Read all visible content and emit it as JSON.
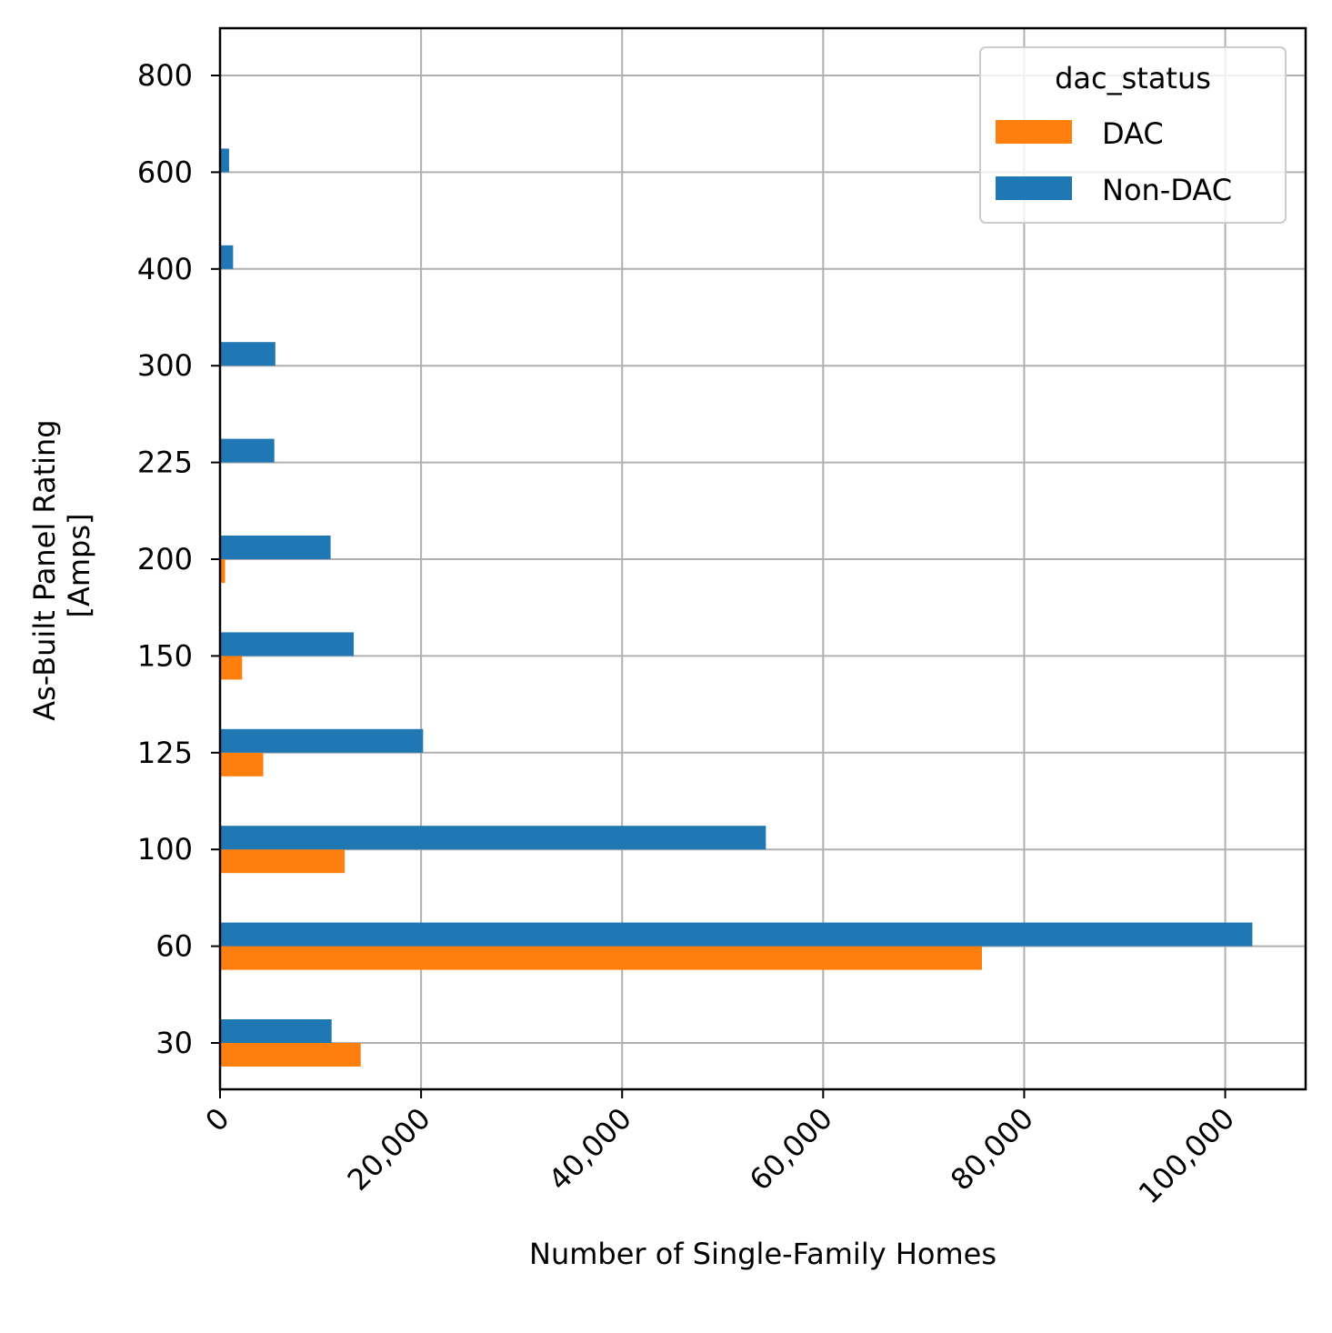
{
  "chart_data": {
    "type": "bar",
    "orientation": "horizontal",
    "categories": [
      "30",
      "60",
      "100",
      "125",
      "150",
      "200",
      "225",
      "300",
      "400",
      "600",
      "800"
    ],
    "series": [
      {
        "name": "DAC",
        "color": "#ff7f0e",
        "values": [
          14000,
          75800,
          12400,
          4300,
          2200,
          500,
          0,
          0,
          0,
          0,
          0
        ]
      },
      {
        "name": "Non-DAC",
        "color": "#1f77b4",
        "values": [
          11100,
          102700,
          54300,
          20200,
          13300,
          11000,
          5400,
          5500,
          1300,
          900,
          0
        ]
      }
    ],
    "xlabel": "Number of Single-Family Homes",
    "ylabel_lines": [
      "As-Built Panel Rating",
      "[Amps]"
    ],
    "xlim": [
      0,
      108000
    ],
    "xticks": [
      0,
      20000,
      40000,
      60000,
      80000,
      100000
    ],
    "xtick_labels": [
      "0",
      "20,000",
      "40,000",
      "60,000",
      "80,000",
      "100,000"
    ],
    "grid": true,
    "legend": {
      "title": "dac_status",
      "position": "top-right"
    }
  }
}
